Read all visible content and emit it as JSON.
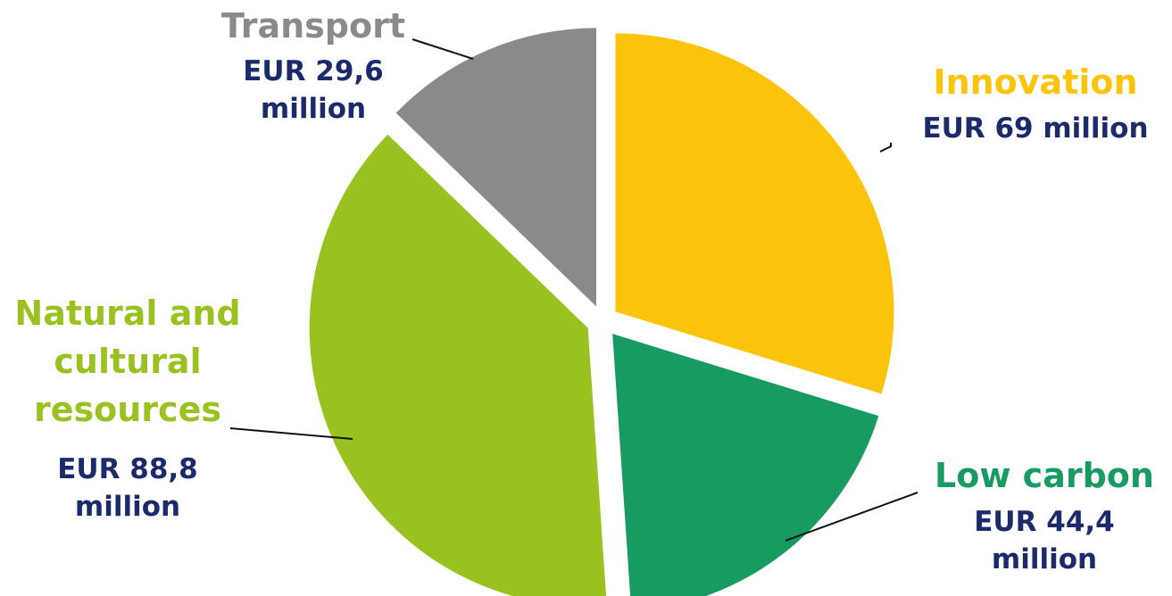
{
  "chart_data": {
    "type": "pie",
    "title": "",
    "unit": "EUR million",
    "slices": [
      {
        "category": "Innovation",
        "value": 69,
        "value_label": [
          "EUR 69 million"
        ],
        "color": "#fcc30b"
      },
      {
        "category": "Low carbon",
        "value": 44.4,
        "value_label": [
          "EUR 44,4",
          "million"
        ],
        "color": "#189b62"
      },
      {
        "category": "Natural and cultural resources",
        "category_lines": [
          "Natural and",
          "cultural",
          "resources"
        ],
        "value": 88.8,
        "value_label": [
          "EUR 88,8",
          "million"
        ],
        "color": "#99c221"
      },
      {
        "category": "Transport",
        "value": 29.6,
        "value_label": [
          "EUR 29,6",
          "million"
        ],
        "color": "#8a8a8c"
      }
    ],
    "exploded": true,
    "legend": "none (direct labels with leader lines)"
  },
  "colors": {
    "value_text": "#1b2a6b",
    "leader_line": "#111111"
  }
}
